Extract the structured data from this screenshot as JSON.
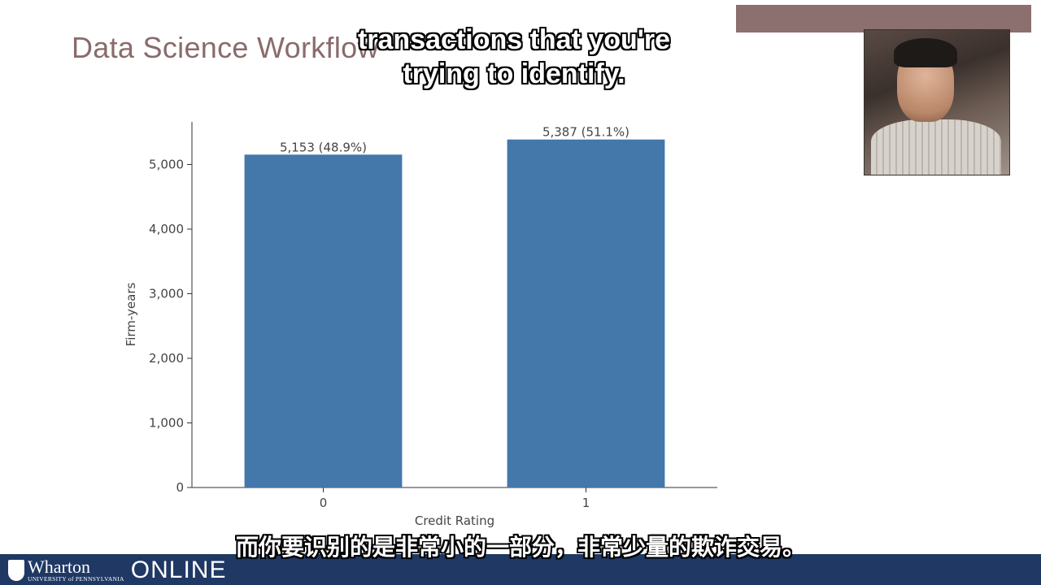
{
  "slide": {
    "title": "Data Science Workflow"
  },
  "subtitles": {
    "english": "transactions that you're\ntrying to identify.",
    "chinese": "而你要识别的是非常小的一部分，非常少量的欺诈交易。"
  },
  "footer": {
    "brand": "Wharton",
    "institution": "UNIVERSITY of PENNSYLVANIA",
    "product": "ONLINE"
  },
  "chart_data": {
    "type": "bar",
    "categories": [
      "0",
      "1"
    ],
    "values": [
      5153,
      5387
    ],
    "data_labels": [
      "5,153 (48.9%)",
      "5,387 (51.1%)"
    ],
    "xlabel": "Credit Rating",
    "ylabel": "Firm-years",
    "ylim": [
      0,
      5660
    ],
    "yticks": [
      0,
      1000,
      2000,
      3000,
      4000,
      5000
    ],
    "ytick_labels": [
      "0",
      "1,000",
      "2,000",
      "3,000",
      "4,000",
      "5,000"
    ],
    "bar_color": "#4477aa",
    "grid": false
  }
}
